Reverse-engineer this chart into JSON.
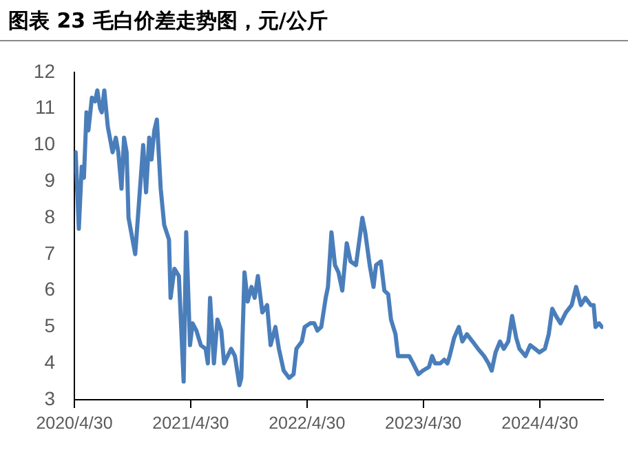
{
  "chart_data": {
    "type": "line",
    "title": "图表 23 毛白价差走势图，元/公斤",
    "x": [
      "2020-04-30",
      "2020-05-04",
      "2020-05-14",
      "2020-05-23",
      "2020-05-30",
      "2020-06-07",
      "2020-06-13",
      "2020-06-24",
      "2020-07-04",
      "2020-07-11",
      "2020-07-20",
      "2020-07-25",
      "2020-08-02",
      "2020-08-13",
      "2020-08-28",
      "2020-09-07",
      "2020-09-15",
      "2020-09-25",
      "2020-10-03",
      "2020-10-11",
      "2020-10-17",
      "2020-11-07",
      "2020-12-02",
      "2020-12-11",
      "2020-12-21",
      "2020-12-28",
      "2021-01-06",
      "2021-01-14",
      "2021-01-26",
      "2021-02-06",
      "2021-02-21",
      "2021-02-26",
      "2021-03-10",
      "2021-03-24",
      "2021-04-08",
      "2021-04-16",
      "2021-04-28",
      "2021-05-06",
      "2021-05-18",
      "2021-06-01",
      "2021-06-16",
      "2021-06-23",
      "2021-06-30",
      "2021-07-12",
      "2021-07-23",
      "2021-08-04",
      "2021-08-13",
      "2021-08-24",
      "2021-09-04",
      "2021-09-16",
      "2021-09-30",
      "2021-10-06",
      "2021-10-16",
      "2021-10-26",
      "2021-11-07",
      "2021-11-17",
      "2021-11-27",
      "2021-12-11",
      "2021-12-26",
      "2022-01-06",
      "2022-01-21",
      "2022-02-01",
      "2022-02-16",
      "2022-03-05",
      "2022-03-19",
      "2022-03-28",
      "2022-04-14",
      "2022-04-23",
      "2022-05-10",
      "2022-05-23",
      "2022-06-02",
      "2022-06-14",
      "2022-06-28",
      "2022-07-05",
      "2022-07-16",
      "2022-07-27",
      "2022-08-07",
      "2022-08-19",
      "2022-09-02",
      "2022-09-14",
      "2022-10-01",
      "2022-10-21",
      "2022-10-30",
      "2022-11-13",
      "2022-11-25",
      "2022-12-03",
      "2022-12-18",
      "2022-12-29",
      "2023-01-10",
      "2023-01-19",
      "2023-02-02",
      "2023-02-10",
      "2023-02-28",
      "2023-03-17",
      "2023-03-29",
      "2023-04-15",
      "2023-04-29",
      "2023-05-18",
      "2023-05-28",
      "2023-06-06",
      "2023-06-23",
      "2023-07-05",
      "2023-07-15",
      "2023-07-22",
      "2023-08-05",
      "2023-08-20",
      "2023-08-31",
      "2023-09-14",
      "2023-10-02",
      "2023-10-19",
      "2023-11-07",
      "2023-11-21",
      "2023-12-01",
      "2023-12-13",
      "2023-12-27",
      "2024-01-08",
      "2024-01-22",
      "2024-02-03",
      "2024-02-16",
      "2024-02-26",
      "2024-03-16",
      "2024-03-31",
      "2024-04-15",
      "2024-04-29",
      "2024-05-16",
      "2024-05-28",
      "2024-06-08",
      "2024-06-20",
      "2024-07-04",
      "2024-07-21",
      "2024-08-08",
      "2024-08-22",
      "2024-09-06",
      "2024-09-20",
      "2024-10-07",
      "2024-10-16",
      "2024-10-22",
      "2024-11-02",
      "2024-11-11"
    ],
    "series": [
      {
        "color": "#4a7ebb",
        "values": [
          9.7,
          9.8,
          7.7,
          9.4,
          9.1,
          10.9,
          10.4,
          11.3,
          11.2,
          11.5,
          11.0,
          10.9,
          11.5,
          10.5,
          9.8,
          10.2,
          9.8,
          8.8,
          10.2,
          9.8,
          8.0,
          7.0,
          10.0,
          8.7,
          10.2,
          9.6,
          10.4,
          10.7,
          8.8,
          7.8,
          7.4,
          5.8,
          6.6,
          6.4,
          3.5,
          7.6,
          4.5,
          5.1,
          4.9,
          4.5,
          4.4,
          4.0,
          5.8,
          4.0,
          5.2,
          4.9,
          4.0,
          4.2,
          4.4,
          4.2,
          3.4,
          3.6,
          6.5,
          5.7,
          6.1,
          5.8,
          6.4,
          5.4,
          5.6,
          4.5,
          5.0,
          4.4,
          3.8,
          3.6,
          3.7,
          4.4,
          4.6,
          5.0,
          5.1,
          5.1,
          4.9,
          5.0,
          5.8,
          6.1,
          7.6,
          6.7,
          6.5,
          6.0,
          7.3,
          6.8,
          6.7,
          8.0,
          7.6,
          6.7,
          6.1,
          6.7,
          6.8,
          6.0,
          5.9,
          5.2,
          4.8,
          4.2,
          4.2,
          4.2,
          4.0,
          3.7,
          3.8,
          3.9,
          4.2,
          4.0,
          4.0,
          4.1,
          4.0,
          4.2,
          4.7,
          5.0,
          4.6,
          4.8,
          4.6,
          4.4,
          4.2,
          4.0,
          3.8,
          4.3,
          4.6,
          4.4,
          4.6,
          5.3,
          4.7,
          4.4,
          4.2,
          4.5,
          4.4,
          4.3,
          4.4,
          4.8,
          5.5,
          5.3,
          5.1,
          5.4,
          5.6,
          6.1,
          5.6,
          5.8,
          5.6,
          5.6,
          5.0,
          5.1,
          5.0
        ]
      }
    ],
    "xlim": [
      "2020-04-30",
      "2024-11-15"
    ],
    "xticks": [
      {
        "value": "2020-04-30",
        "label": "2020/4/30"
      },
      {
        "value": "2021-04-30",
        "label": "2021/4/30"
      },
      {
        "value": "2022-04-30",
        "label": "2022/4/30"
      },
      {
        "value": "2023-04-30",
        "label": "2023/4/30"
      },
      {
        "value": "2024-04-30",
        "label": "2024/4/30"
      }
    ],
    "ylim": [
      3,
      12
    ],
    "yticks": [
      3,
      4,
      5,
      6,
      7,
      8,
      9,
      10,
      11,
      12
    ],
    "grid": false,
    "legend": false,
    "marker": "none",
    "line_style": "solid"
  }
}
